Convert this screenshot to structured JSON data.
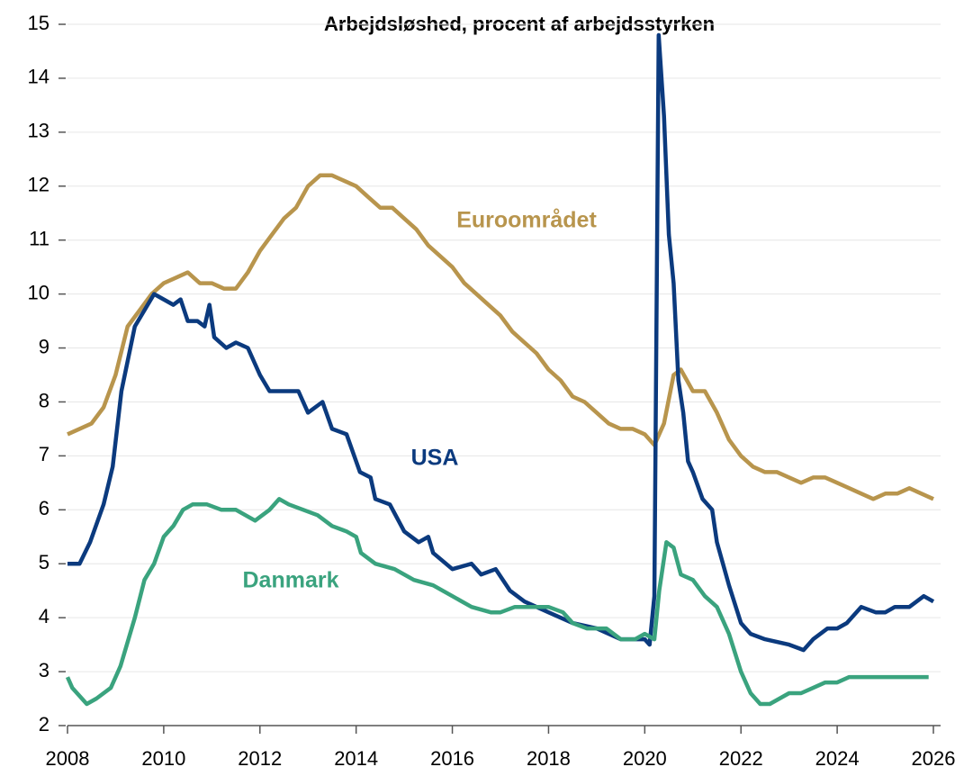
{
  "chart_data": {
    "type": "line",
    "title": "Arbejdsløshed, procent af arbejdsstyrken",
    "xlim": [
      2008,
      2026
    ],
    "xticks": [
      2008,
      2010,
      2012,
      2014,
      2016,
      2018,
      2020,
      2022,
      2024,
      2026
    ],
    "ylim": [
      2,
      15
    ],
    "yticks": [
      2,
      3,
      4,
      5,
      6,
      7,
      8,
      9,
      10,
      11,
      12,
      13,
      14,
      15
    ],
    "grid": true,
    "series": [
      {
        "name": "Euroområdet",
        "color": "#b8954d",
        "x": [
          2008.0,
          2008.25,
          2008.5,
          2008.75,
          2009.0,
          2009.25,
          2009.5,
          2009.75,
          2010.0,
          2010.25,
          2010.5,
          2010.75,
          2011.0,
          2011.25,
          2011.5,
          2011.75,
          2012.0,
          2012.25,
          2012.5,
          2012.75,
          2013.0,
          2013.25,
          2013.5,
          2013.75,
          2014.0,
          2014.25,
          2014.5,
          2014.75,
          2015.0,
          2015.25,
          2015.5,
          2015.75,
          2016.0,
          2016.25,
          2016.5,
          2016.75,
          2017.0,
          2017.25,
          2017.5,
          2017.75,
          2018.0,
          2018.25,
          2018.5,
          2018.75,
          2019.0,
          2019.25,
          2019.5,
          2019.75,
          2020.0,
          2020.2,
          2020.4,
          2020.6,
          2020.75,
          2021.0,
          2021.25,
          2021.5,
          2021.75,
          2022.0,
          2022.25,
          2022.5,
          2022.75,
          2023.0,
          2023.25,
          2023.5,
          2023.75,
          2024.0,
          2024.25,
          2024.5,
          2024.75,
          2025.0,
          2025.25,
          2025.5,
          2025.75,
          2026.0
        ],
        "values": [
          7.4,
          7.5,
          7.6,
          7.9,
          8.5,
          9.4,
          9.7,
          10.0,
          10.2,
          10.3,
          10.4,
          10.2,
          10.2,
          10.1,
          10.1,
          10.4,
          10.8,
          11.1,
          11.4,
          11.6,
          12.0,
          12.2,
          12.2,
          12.1,
          12.0,
          11.8,
          11.6,
          11.6,
          11.4,
          11.2,
          10.9,
          10.7,
          10.5,
          10.2,
          10.0,
          9.8,
          9.6,
          9.3,
          9.1,
          8.9,
          8.6,
          8.4,
          8.1,
          8.0,
          7.8,
          7.6,
          7.5,
          7.5,
          7.4,
          7.2,
          7.6,
          8.5,
          8.6,
          8.2,
          8.2,
          7.8,
          7.3,
          7.0,
          6.8,
          6.7,
          6.7,
          6.6,
          6.5,
          6.6,
          6.6,
          6.5,
          6.4,
          6.3,
          6.2,
          6.3,
          6.3,
          6.4,
          6.3,
          6.2
        ]
      },
      {
        "name": "USA",
        "color": "#0b3a7e",
        "x": [
          2008.0,
          2008.25,
          2008.47,
          2008.75,
          2008.94,
          2009.12,
          2009.4,
          2009.8,
          2010.0,
          2010.2,
          2010.35,
          2010.5,
          2010.7,
          2010.85,
          2010.95,
          2011.05,
          2011.3,
          2011.5,
          2011.75,
          2012.0,
          2012.2,
          2012.5,
          2012.8,
          2013.0,
          2013.3,
          2013.5,
          2013.8,
          2014.08,
          2014.3,
          2014.4,
          2014.7,
          2015.0,
          2015.3,
          2015.5,
          2015.6,
          2016.0,
          2016.4,
          2016.6,
          2016.9,
          2017.2,
          2017.5,
          2018.0,
          2018.5,
          2019.0,
          2019.5,
          2020.0,
          2020.1,
          2020.2,
          2020.29,
          2020.4,
          2020.5,
          2020.6,
          2020.7,
          2020.8,
          2020.9,
          2021.0,
          2021.2,
          2021.4,
          2021.5,
          2021.75,
          2022.0,
          2022.2,
          2022.5,
          2023.0,
          2023.3,
          2023.5,
          2023.8,
          2024.0,
          2024.2,
          2024.5,
          2024.8,
          2025.0,
          2025.2,
          2025.5,
          2025.8,
          2026.0
        ],
        "values": [
          5.0,
          5.0,
          5.4,
          6.1,
          6.8,
          8.2,
          9.4,
          10.0,
          9.9,
          9.8,
          9.9,
          9.5,
          9.5,
          9.4,
          9.8,
          9.2,
          9.0,
          9.1,
          9.0,
          8.5,
          8.2,
          8.2,
          8.2,
          7.8,
          8.0,
          7.5,
          7.4,
          6.7,
          6.6,
          6.2,
          6.1,
          5.6,
          5.4,
          5.5,
          5.2,
          4.9,
          5.0,
          4.8,
          4.9,
          4.5,
          4.3,
          4.1,
          3.9,
          3.8,
          3.6,
          3.6,
          3.5,
          4.4,
          14.8,
          13.3,
          11.1,
          10.2,
          8.4,
          7.8,
          6.9,
          6.7,
          6.2,
          6.0,
          5.4,
          4.6,
          3.9,
          3.7,
          3.6,
          3.5,
          3.4,
          3.6,
          3.8,
          3.8,
          3.9,
          4.2,
          4.1,
          4.1,
          4.2,
          4.2,
          4.4,
          4.3
        ]
      },
      {
        "name": "Danmark",
        "color": "#3aa37e",
        "x": [
          2008.0,
          2008.1,
          2008.4,
          2008.6,
          2008.9,
          2009.1,
          2009.4,
          2009.6,
          2009.8,
          2010.0,
          2010.2,
          2010.4,
          2010.6,
          2010.9,
          2011.2,
          2011.5,
          2011.9,
          2012.2,
          2012.4,
          2012.6,
          2012.9,
          2013.2,
          2013.5,
          2013.8,
          2014.0,
          2014.1,
          2014.4,
          2014.8,
          2015.2,
          2015.6,
          2016.0,
          2016.4,
          2016.8,
          2017.0,
          2017.3,
          2017.7,
          2018.0,
          2018.3,
          2018.5,
          2018.8,
          2019.2,
          2019.5,
          2019.8,
          2020.0,
          2020.2,
          2020.3,
          2020.45,
          2020.6,
          2020.75,
          2021.0,
          2021.25,
          2021.5,
          2021.75,
          2022.0,
          2022.2,
          2022.4,
          2022.6,
          2022.8,
          2023.0,
          2023.25,
          2023.5,
          2023.75,
          2024.0,
          2024.25,
          2024.5,
          2025.0,
          2025.5,
          2025.9
        ],
        "values": [
          2.9,
          2.7,
          2.4,
          2.5,
          2.7,
          3.1,
          4.0,
          4.7,
          5.0,
          5.5,
          5.7,
          6.0,
          6.1,
          6.1,
          6.0,
          6.0,
          5.8,
          6.0,
          6.2,
          6.1,
          6.0,
          5.9,
          5.7,
          5.6,
          5.5,
          5.2,
          5.0,
          4.9,
          4.7,
          4.6,
          4.4,
          4.2,
          4.1,
          4.1,
          4.2,
          4.2,
          4.2,
          4.1,
          3.9,
          3.8,
          3.8,
          3.6,
          3.6,
          3.7,
          3.6,
          4.5,
          5.4,
          5.3,
          4.8,
          4.7,
          4.4,
          4.2,
          3.7,
          3.0,
          2.6,
          2.4,
          2.4,
          2.5,
          2.6,
          2.6,
          2.7,
          2.8,
          2.8,
          2.9,
          2.9,
          2.9,
          2.9,
          2.9
        ]
      }
    ]
  }
}
